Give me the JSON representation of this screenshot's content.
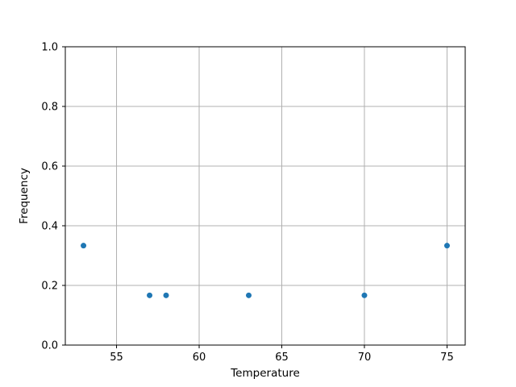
{
  "chart_data": {
    "type": "scatter",
    "title": "",
    "xlabel": "Temperature",
    "ylabel": "Frequency",
    "x": [
      53,
      57,
      58,
      63,
      70,
      75
    ],
    "y": [
      0.3333,
      0.1667,
      0.1667,
      0.1667,
      0.1667,
      0.3333
    ],
    "xlim": [
      51.9,
      76.1
    ],
    "ylim": [
      0.0,
      1.0
    ],
    "xticks": [
      55,
      60,
      65,
      70,
      75
    ],
    "yticks": [
      0.0,
      0.2,
      0.4,
      0.6,
      0.8,
      1.0
    ],
    "xtick_labels": [
      "55",
      "60",
      "65",
      "70",
      "75"
    ],
    "ytick_labels": [
      "0.0",
      "0.2",
      "0.4",
      "0.6",
      "0.8",
      "1.0"
    ],
    "grid": true,
    "legend": null,
    "marker_color": "#1f77b4",
    "grid_color": "#b0b0b0",
    "axis_color": "#000000"
  }
}
